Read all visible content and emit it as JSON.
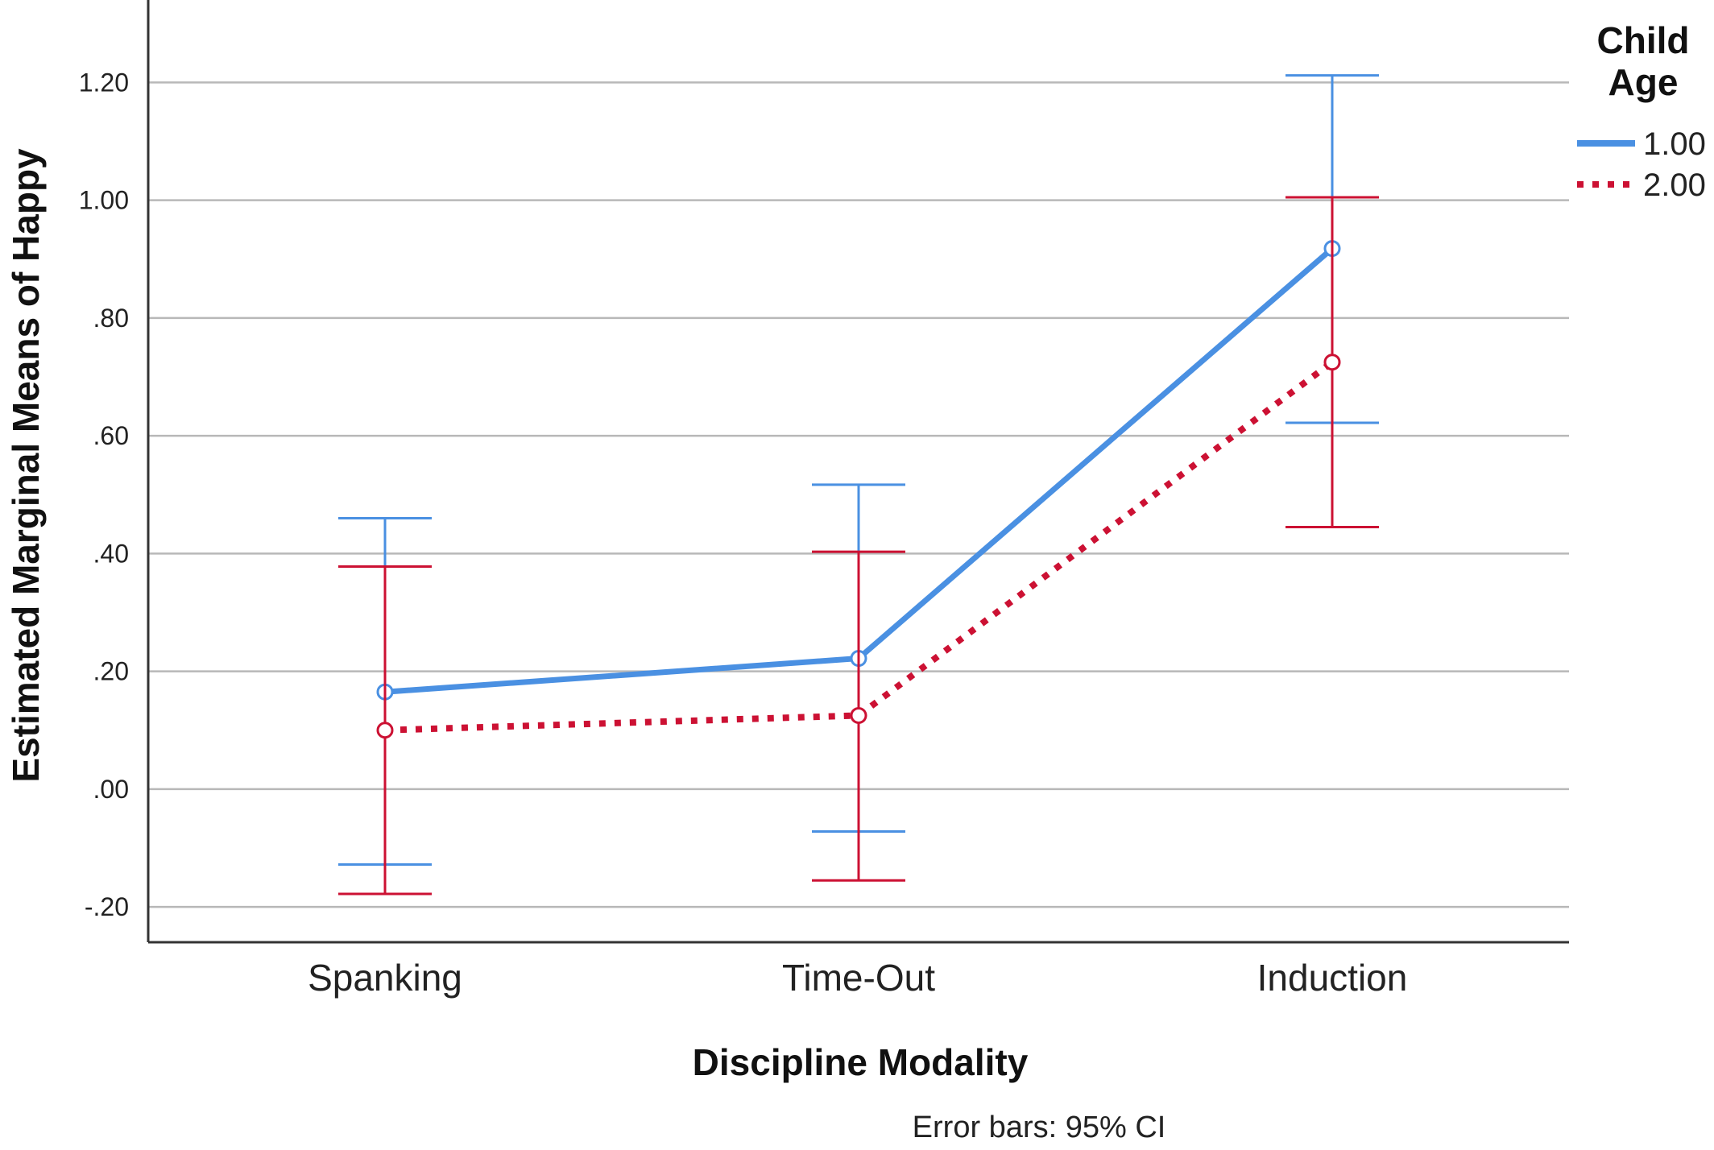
{
  "chart_data": {
    "type": "line",
    "xlabel": "Discipline Modality",
    "ylabel": "Estimated Marginal Means of Happy",
    "categories": [
      "Spanking",
      "Time-Out",
      "Induction"
    ],
    "ylim": [
      -0.26,
      1.34
    ],
    "yticks": [
      -0.2,
      0.0,
      0.2,
      0.4,
      0.6,
      0.8,
      1.0,
      1.2
    ],
    "ytick_labels": [
      "-.20",
      ".00",
      ".20",
      ".40",
      ".60",
      ".80",
      "1.00",
      "1.20"
    ],
    "grid": true,
    "legend": {
      "title_lines": [
        "Child",
        "Age"
      ],
      "placement": "right"
    },
    "series": [
      {
        "name": "1.00",
        "color": "#4a90e2",
        "line_style": "solid",
        "values": [
          0.165,
          0.222,
          0.918
        ],
        "ci_lower": [
          -0.128,
          -0.072,
          0.622
        ],
        "ci_upper": [
          0.46,
          0.517,
          1.212
        ]
      },
      {
        "name": "2.00",
        "color": "#cc1133",
        "line_style": "dotted",
        "values": [
          0.1,
          0.125,
          0.725
        ],
        "ci_lower": [
          -0.178,
          -0.155,
          0.445
        ],
        "ci_upper": [
          0.378,
          0.403,
          1.005
        ]
      }
    ],
    "footnote": "Error bars: 95% CI"
  }
}
